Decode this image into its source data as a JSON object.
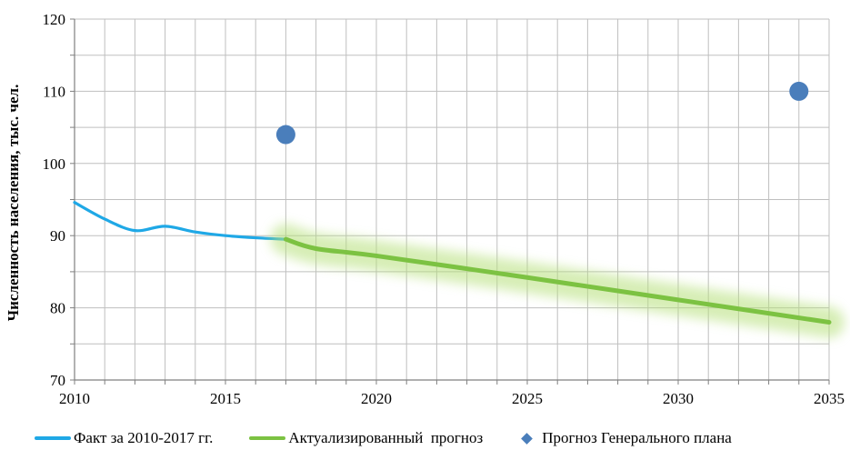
{
  "chart_data": {
    "type": "line",
    "ylabel": "Численность населения, тыс. чел.",
    "xlim": [
      2010,
      2035
    ],
    "ylim": [
      70,
      120
    ],
    "xticks": [
      2010,
      2015,
      2020,
      2025,
      2030,
      2035
    ],
    "yticks": [
      70,
      80,
      90,
      100,
      110,
      120
    ],
    "grid": true,
    "legend_position": "bottom",
    "series": [
      {
        "name": "Факт за 2010-2017 гг.",
        "type": "line",
        "color": "#1FA8E6",
        "x": [
          2010,
          2011,
          2012,
          2013,
          2014,
          2015,
          2016,
          2017
        ],
        "y": [
          94.6,
          92.3,
          90.7,
          91.3,
          90.5,
          90.0,
          89.7,
          89.5
        ]
      },
      {
        "name": "Актуализированный  прогноз",
        "type": "line",
        "color": "#7CC242",
        "glow": true,
        "x": [
          2017,
          2018,
          2020,
          2025,
          2030,
          2035
        ],
        "y": [
          89.5,
          88.2,
          87.2,
          84.2,
          81.1,
          78.0
        ]
      },
      {
        "name": "Прогноз Генерального плана",
        "type": "scatter",
        "color": "#4A7EBB",
        "x": [
          2017,
          2034
        ],
        "y": [
          104.0,
          110.0
        ]
      }
    ]
  }
}
